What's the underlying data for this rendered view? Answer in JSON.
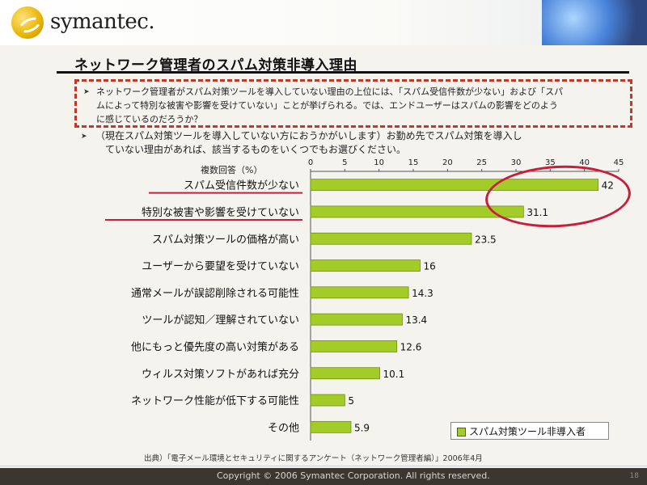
{
  "header": {
    "brand": "symantec."
  },
  "title": "ネットワーク管理者のスパム対策非導入理由",
  "note": {
    "lines": [
      "ネットワーク管理者がスパム対策ツールを導入していない理由の上位には、「スパム受信件数が少ない」および「スパ",
      "ムによって特別な被害や影響を受けていない」ことが挙げられる。では、エンドユーザーはスパムの影響をどのよう",
      "に感じているのだろうか？"
    ]
  },
  "question": {
    "lines": [
      "（現在スパム対策ツールを導入していない方におうかがいします）お勤め先でスパム対策を導入し",
      "ていない理由があれば、該当するものをいくつでもお選びください。"
    ]
  },
  "chart_data": {
    "type": "bar",
    "orientation": "horizontal",
    "label": "複数回答（%）",
    "ticks": [
      0,
      5,
      10,
      15,
      20,
      25,
      30,
      35,
      40,
      45
    ],
    "xlim": [
      0,
      45
    ],
    "categories": [
      "スパム受信件数が少ない",
      "特別な被害や影響を受けていない",
      "スパム対策ツールの価格が高い",
      "ユーザーから要望を受けていない",
      "通常メールが誤認削除される可能性",
      "ツールが認知／理解されていない",
      "他にもっと優先度の高い対策がある",
      "ウィルス対策ソフトがあれば充分",
      "ネットワーク性能が低下する可能性",
      "その他"
    ],
    "values": [
      42,
      31.1,
      23.5,
      16,
      14.3,
      13.4,
      12.6,
      10.1,
      5,
      5.9
    ],
    "value_labels": [
      "42",
      "31.1",
      "23.5",
      "16",
      "14.3",
      "13.4",
      "12.6",
      "10.1",
      "5",
      "5.9"
    ],
    "underlined": [
      0,
      1
    ],
    "series": [
      {
        "name": "スパム対策ツール非導入者",
        "values": [
          42,
          31.1,
          23.5,
          16,
          14.3,
          13.4,
          12.6,
          10.1,
          5,
          5.9
        ]
      }
    ],
    "legend": "bottom-right",
    "grid": false,
    "bar_color": "#a3cc29"
  },
  "source": "出典）「電子メール環境とセキュリティに関するアンケート（ネットワーク管理者編）」2006年4月",
  "copyright": "Copyright © 2006 Symantec Corporation. All rights reserved.",
  "page_number": "18",
  "colors": {
    "accent": "#c81e3c",
    "bar": "#a3cc29",
    "text": "#111111"
  }
}
